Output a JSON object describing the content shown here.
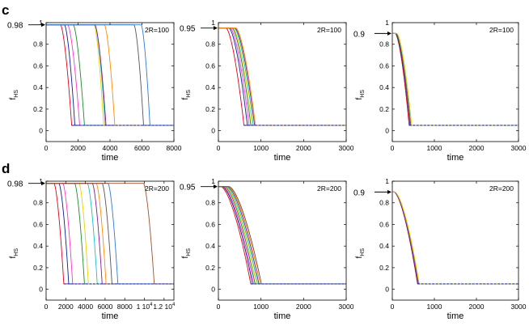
{
  "figure": {
    "row_labels": [
      "c",
      "d"
    ],
    "arrow_color": "#000000"
  },
  "colors": [
    "#e3001b",
    "#0a1f9c",
    "#ff35c8",
    "#1e8a2a",
    "#e2d400",
    "#16c2c2",
    "#8a1a8a",
    "#ff8c00",
    "#555555",
    "#2d7bd6",
    "#a0522d",
    "#00a86b"
  ],
  "chart_data": [
    {
      "id": "c1",
      "type": "line",
      "row": "c",
      "col": 0,
      "title": "",
      "annotation": "2R=100",
      "xlabel": "time",
      "ylabel": "f",
      "ylabel_sub": "HS",
      "xlim": [
        0,
        8000
      ],
      "ylim": [
        -0.1,
        1.0
      ],
      "xticks": [
        0,
        2000,
        4000,
        6000,
        8000
      ],
      "xtick_labels": [
        "0",
        "2000",
        "4000",
        "6000",
        "8000"
      ],
      "yticks": [
        0,
        0.2,
        0.4,
        0.6,
        0.8,
        1
      ],
      "ytick_labels": [
        "0",
        "0.2",
        "0.4",
        "0.6",
        "0.8",
        "1"
      ],
      "start_value_label": "0.98",
      "start_value": 0.98,
      "baseline": 0.05,
      "series_note": "Sigmoidal decay curves from start value to baseline; each series given by the time at which f reaches the baseline",
      "series": [
        {
          "name": "s1",
          "end_time": 1600,
          "width": 700
        },
        {
          "name": "s2",
          "end_time": 1800,
          "width": 650
        },
        {
          "name": "s3",
          "end_time": 2100,
          "width": 750
        },
        {
          "name": "s4",
          "end_time": 2400,
          "width": 700
        },
        {
          "name": "s5",
          "end_time": 3600,
          "width": 600
        },
        {
          "name": "s6",
          "end_time": 3700,
          "width": 650
        },
        {
          "name": "s7",
          "end_time": 3750,
          "width": 700
        },
        {
          "name": "s8",
          "end_time": 4300,
          "width": 650
        },
        {
          "name": "s9",
          "end_time": 6100,
          "width": 600
        },
        {
          "name": "s10",
          "end_time": 6500,
          "width": 550
        }
      ]
    },
    {
      "id": "c2",
      "type": "line",
      "row": "c",
      "col": 1,
      "title": "",
      "annotation": "2R=100",
      "xlabel": "time",
      "ylabel": "f",
      "ylabel_sub": "HS",
      "xlim": [
        0,
        3000
      ],
      "ylim": [
        -0.1,
        1.0
      ],
      "xticks": [
        0,
        1000,
        2000,
        3000
      ],
      "xtick_labels": [
        "0",
        "1000",
        "2000",
        "3000"
      ],
      "yticks": [
        0,
        0.2,
        0.4,
        0.6,
        0.8,
        1
      ],
      "ytick_labels": [
        "0",
        "0.2",
        "0.4",
        "0.6",
        "0.8",
        "1"
      ],
      "start_value_label": "0.95",
      "start_value": 0.95,
      "baseline": 0.05,
      "series": [
        {
          "name": "s1",
          "end_time": 600,
          "width": 420
        },
        {
          "name": "s2",
          "end_time": 680,
          "width": 430
        },
        {
          "name": "s3",
          "end_time": 720,
          "width": 440
        },
        {
          "name": "s4",
          "end_time": 760,
          "width": 440
        },
        {
          "name": "s5",
          "end_time": 790,
          "width": 450
        },
        {
          "name": "s6",
          "end_time": 820,
          "width": 450
        },
        {
          "name": "s7",
          "end_time": 850,
          "width": 460
        },
        {
          "name": "s8",
          "end_time": 870,
          "width": 460
        }
      ]
    },
    {
      "id": "c3",
      "type": "line",
      "row": "c",
      "col": 2,
      "title": "",
      "annotation": "2R=100",
      "xlabel": "time",
      "ylabel": "f",
      "ylabel_sub": "HS",
      "xlim": [
        0,
        3000
      ],
      "ylim": [
        -0.1,
        1.0
      ],
      "xticks": [
        0,
        1000,
        2000,
        3000
      ],
      "xtick_labels": [
        "0",
        "1000",
        "2000",
        "3000"
      ],
      "yticks": [
        0,
        0.2,
        0.4,
        0.6,
        0.8,
        1
      ],
      "ytick_labels": [
        "0",
        "0.2",
        "0.4",
        "0.6",
        "0.8",
        "1"
      ],
      "start_value_label": "0.9",
      "start_value": 0.9,
      "baseline": 0.05,
      "series": [
        {
          "name": "s1",
          "end_time": 400,
          "width": 330
        },
        {
          "name": "s2",
          "end_time": 420,
          "width": 340
        },
        {
          "name": "s3",
          "end_time": 430,
          "width": 340
        },
        {
          "name": "s4",
          "end_time": 440,
          "width": 350
        },
        {
          "name": "s5",
          "end_time": 460,
          "width": 350
        }
      ]
    },
    {
      "id": "d1",
      "type": "line",
      "row": "d",
      "col": 0,
      "title": "",
      "annotation": "2R=200",
      "xlabel": "time",
      "ylabel": "f",
      "ylabel_sub": "HS",
      "xlim": [
        0,
        13000
      ],
      "ylim": [
        -0.1,
        1.0
      ],
      "xticks": [
        0,
        2000,
        4000,
        6000,
        8000,
        10000,
        12000
      ],
      "xtick_labels": [
        "0",
        "2000",
        "4000",
        "6000",
        "8000",
        "1 10",
        "1.2 10"
      ],
      "xtick_exponent": "4",
      "yticks": [
        0,
        0.2,
        0.4,
        0.6,
        0.8,
        1
      ],
      "ytick_labels": [
        "0",
        "0.2",
        "0.4",
        "0.6",
        "0.8",
        "1"
      ],
      "start_value_label": "0.98",
      "start_value": 0.98,
      "baseline": 0.05,
      "series": [
        {
          "name": "s1",
          "end_time": 1800,
          "width": 1000
        },
        {
          "name": "s2",
          "end_time": 2300,
          "width": 1000
        },
        {
          "name": "s3",
          "end_time": 2700,
          "width": 1000
        },
        {
          "name": "s4",
          "end_time": 3900,
          "width": 1000
        },
        {
          "name": "s5",
          "end_time": 4300,
          "width": 950
        },
        {
          "name": "s6",
          "end_time": 5200,
          "width": 1000
        },
        {
          "name": "s7",
          "end_time": 5700,
          "width": 1000
        },
        {
          "name": "s8",
          "end_time": 6100,
          "width": 1000
        },
        {
          "name": "s9",
          "end_time": 6700,
          "width": 1000
        },
        {
          "name": "s10",
          "end_time": 7300,
          "width": 1000
        },
        {
          "name": "s11",
          "end_time": 11000,
          "width": 1100
        }
      ]
    },
    {
      "id": "d2",
      "type": "line",
      "row": "d",
      "col": 1,
      "title": "",
      "annotation": "2R=200",
      "xlabel": "time",
      "ylabel": "f",
      "ylabel_sub": "HS",
      "xlim": [
        0,
        3000
      ],
      "ylim": [
        -0.1,
        1.0
      ],
      "xticks": [
        0,
        1000,
        2000,
        3000
      ],
      "xtick_labels": [
        "0",
        "1000",
        "2000",
        "3000"
      ],
      "yticks": [
        0,
        0.2,
        0.4,
        0.6,
        0.8,
        1
      ],
      "ytick_labels": [
        "0",
        "0.2",
        "0.4",
        "0.6",
        "0.8",
        "1"
      ],
      "start_value_label": "0.95",
      "start_value": 0.95,
      "baseline": 0.05,
      "series": [
        {
          "name": "s1",
          "end_time": 760,
          "width": 700
        },
        {
          "name": "s2",
          "end_time": 800,
          "width": 710
        },
        {
          "name": "s3",
          "end_time": 830,
          "width": 720
        },
        {
          "name": "s4",
          "end_time": 860,
          "width": 720
        },
        {
          "name": "s5",
          "end_time": 890,
          "width": 730
        },
        {
          "name": "s6",
          "end_time": 920,
          "width": 740
        },
        {
          "name": "s7",
          "end_time": 950,
          "width": 740
        },
        {
          "name": "s8",
          "end_time": 980,
          "width": 750
        },
        {
          "name": "s9",
          "end_time": 1010,
          "width": 760
        }
      ]
    },
    {
      "id": "d3",
      "type": "line",
      "row": "d",
      "col": 2,
      "title": "",
      "annotation": "2R=200",
      "xlabel": "time",
      "ylabel": "f",
      "ylabel_sub": "HS",
      "xlim": [
        0,
        3000
      ],
      "ylim": [
        -0.1,
        1.0
      ],
      "xticks": [
        0,
        1000,
        2000,
        3000
      ],
      "xtick_labels": [
        "0",
        "1000",
        "2000",
        "3000"
      ],
      "yticks": [
        0,
        0.2,
        0.4,
        0.6,
        0.8,
        1
      ],
      "ytick_labels": [
        "0",
        "0.2",
        "0.4",
        "0.6",
        "0.8",
        "1"
      ],
      "start_value_label": "0.9",
      "start_value": 0.9,
      "baseline": 0.05,
      "series": [
        {
          "name": "s1",
          "end_time": 600,
          "width": 560
        },
        {
          "name": "s2",
          "end_time": 610,
          "width": 565
        },
        {
          "name": "s3",
          "end_time": 620,
          "width": 570
        },
        {
          "name": "s4",
          "end_time": 630,
          "width": 575
        },
        {
          "name": "s5",
          "end_time": 640,
          "width": 580
        }
      ]
    }
  ]
}
